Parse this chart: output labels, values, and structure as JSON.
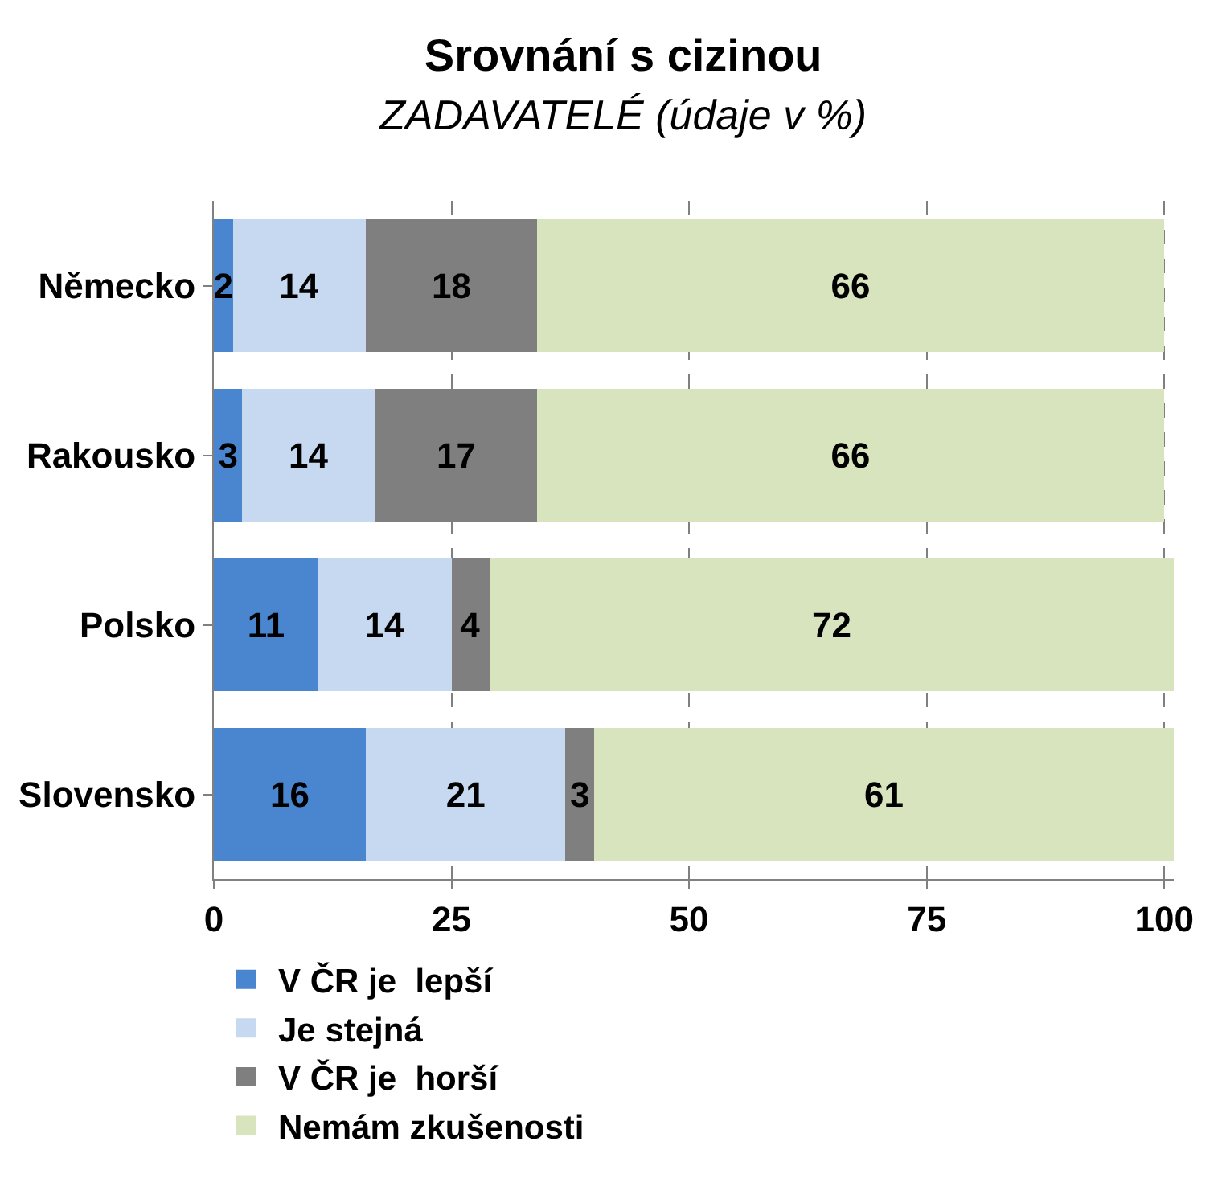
{
  "chart_data": {
    "type": "bar",
    "orientation": "horizontal",
    "stacked": true,
    "title": "Srovnání s cizinou",
    "subtitle": "ZADAVATELÉ (údaje v %)",
    "categories": [
      "Německo",
      "Rakousko",
      "Polsko",
      "Slovensko"
    ],
    "series": [
      {
        "name": "V ČR je  lepší",
        "color": "#4a86d0",
        "values": [
          2,
          3,
          11,
          16
        ]
      },
      {
        "name": "Je stejná",
        "color": "#c6d9f0",
        "values": [
          14,
          14,
          14,
          21
        ]
      },
      {
        "name": "V ČR je  horší",
        "color": "#7f7f7f",
        "values": [
          18,
          17,
          4,
          3
        ]
      },
      {
        "name": "Nemám zkušenosti",
        "color": "#d7e4bd",
        "values": [
          66,
          66,
          72,
          61
        ]
      }
    ],
    "xlim": [
      0,
      101
    ],
    "xticks": [
      0,
      25,
      50,
      75,
      100
    ],
    "grid": "x",
    "legend": "bottom",
    "data_labels": true
  }
}
